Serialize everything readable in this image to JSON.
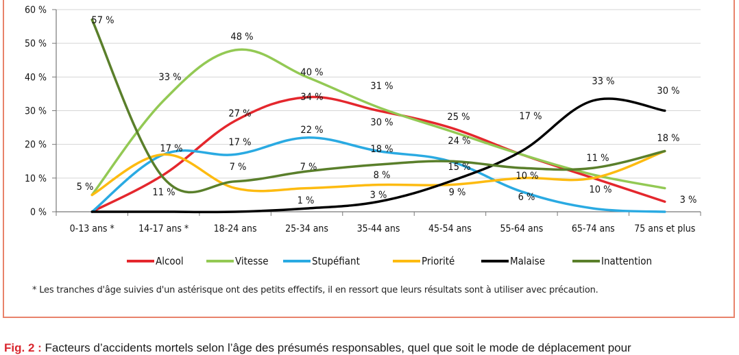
{
  "chart_data": {
    "type": "line",
    "categories": [
      "0-13 ans *",
      "14-17 ans *",
      "18-24 ans",
      "25-34 ans",
      "35-44 ans",
      "45-54 ans",
      "55-64 ans",
      "65-74 ans",
      "75 ans et plus"
    ],
    "ylim": [
      0,
      60
    ],
    "yticks": [
      "0 %",
      "10 %",
      "20 %",
      "30 %",
      "40 %",
      "50 %",
      "60 %"
    ],
    "series": [
      {
        "name": "Alcool",
        "color": "#e4272d",
        "values": [
          0,
          11,
          27,
          34,
          30,
          25,
          17,
          10,
          3
        ]
      },
      {
        "name": "Vitesse",
        "color": "#93c954",
        "values": [
          5,
          33,
          48,
          40,
          31,
          24,
          17,
          11,
          7
        ]
      },
      {
        "name": "Stupéfiant",
        "color": "#2aaae2",
        "values": [
          0,
          17,
          17,
          22,
          18,
          15,
          6,
          1,
          0
        ]
      },
      {
        "name": "Priorité",
        "color": "#fdbb11",
        "values": [
          5,
          17,
          7,
          7,
          8,
          8,
          10,
          10,
          18
        ]
      },
      {
        "name": "Malaise",
        "color": "#000000",
        "values": [
          0,
          0,
          0,
          1,
          3,
          9,
          18,
          33,
          30
        ]
      },
      {
        "name": "Inattention",
        "color": "#5a7f2b",
        "values": [
          57,
          10,
          9,
          12,
          14,
          15,
          13,
          13,
          18
        ]
      }
    ],
    "data_labels": [
      "57 %",
      "33 %",
      "48 %",
      "40 %",
      "31 %",
      "30 %",
      "34 %",
      "27 %",
      "22 %",
      "17 %",
      "17 %",
      "7 %",
      "7 %",
      "5 %",
      "11 %",
      "1 %",
      "3 %",
      "8 %",
      "18 %",
      "25 %",
      "24 %",
      "15 %",
      "9 %",
      "17 %",
      "10 %",
      "6 %",
      "33 %",
      "11 %",
      "10 %",
      "30 %",
      "18 %",
      "3 %"
    ]
  },
  "footnote": "* Les tranches d'âge suivies d'un astérisque ont des petits effectifs, il en ressort que leurs résultats sont à utiliser avec précaution.",
  "caption": {
    "label": "Fig. 2 :",
    "text": "Facteurs d’accidents mortels selon l’âge des présumés responsables, quel que soit le mode de déplacement pour"
  }
}
